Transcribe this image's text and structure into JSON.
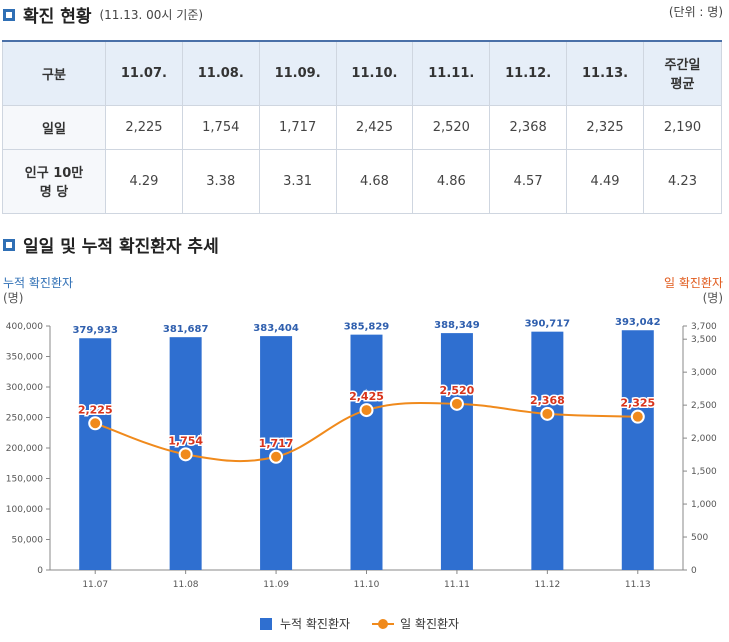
{
  "section1": {
    "title": "확진 현황",
    "subtitle": "(11.13. 00시 기준)",
    "unit": "(단위 : 명)"
  },
  "table": {
    "header_corner": "구분",
    "dates": [
      "11.07.",
      "11.08.",
      "11.09.",
      "11.10.",
      "11.11.",
      "11.12.",
      "11.13."
    ],
    "weekly_avg_label": [
      "주간일",
      "평균"
    ],
    "row1_label": "일일",
    "row1_values": [
      "2,225",
      "1,754",
      "1,717",
      "2,425",
      "2,520",
      "2,368",
      "2,325",
      "2,190"
    ],
    "row2_label": [
      "인구 10만",
      "명 당"
    ],
    "row2_values": [
      "4.29",
      "3.38",
      "3.31",
      "4.68",
      "4.86",
      "4.57",
      "4.49",
      "4.23"
    ]
  },
  "section2": {
    "title": "일일 및 누적 확진환자 추세"
  },
  "colors": {
    "bar": "#2f6fd0",
    "line": "#f08a1c",
    "bar_label": "#2f5fae",
    "line_label": "#d8341c",
    "accent": "#2f6fb5"
  },
  "chart_data": {
    "type": "bar",
    "categories": [
      "11.07",
      "11.08",
      "11.09",
      "11.10",
      "11.11",
      "11.12",
      "11.13"
    ],
    "left_axis_title": [
      "누적 확진환자",
      "(명)"
    ],
    "right_axis_title": [
      "일 확진환자",
      "(명)"
    ],
    "ylim_left": [
      0,
      400000
    ],
    "yticks_left": [
      0,
      50000,
      100000,
      150000,
      200000,
      250000,
      300000,
      350000,
      400000
    ],
    "ytick_labels_left": [
      "0",
      "50,000",
      "100,000",
      "150,000",
      "200,000",
      "250,000",
      "300,000",
      "350,000",
      "400,000"
    ],
    "ylim_right": [
      0,
      3700
    ],
    "yticks_right": [
      0,
      500,
      1000,
      1500,
      2000,
      2500,
      3000,
      3500,
      3700
    ],
    "ytick_labels_right": [
      "0",
      "500",
      "1,000",
      "1,500",
      "2,000",
      "2,500",
      "3,000",
      "3,500",
      "3,700"
    ],
    "series": [
      {
        "name": "누적 확진환자",
        "type": "bar",
        "axis": "left",
        "values": [
          379933,
          381687,
          383404,
          385829,
          388349,
          390717,
          393042
        ],
        "labels": [
          "379,933",
          "381,687",
          "383,404",
          "385,829",
          "388,349",
          "390,717",
          "393,042"
        ]
      },
      {
        "name": "일 확진환자",
        "type": "line",
        "axis": "right",
        "values": [
          2225,
          1754,
          1717,
          2425,
          2520,
          2368,
          2325
        ],
        "labels": [
          "2,225",
          "1,754",
          "1,717",
          "2,425",
          "2,520",
          "2,368",
          "2,325"
        ]
      }
    ],
    "grid": false,
    "legend_position": "bottom-center"
  }
}
